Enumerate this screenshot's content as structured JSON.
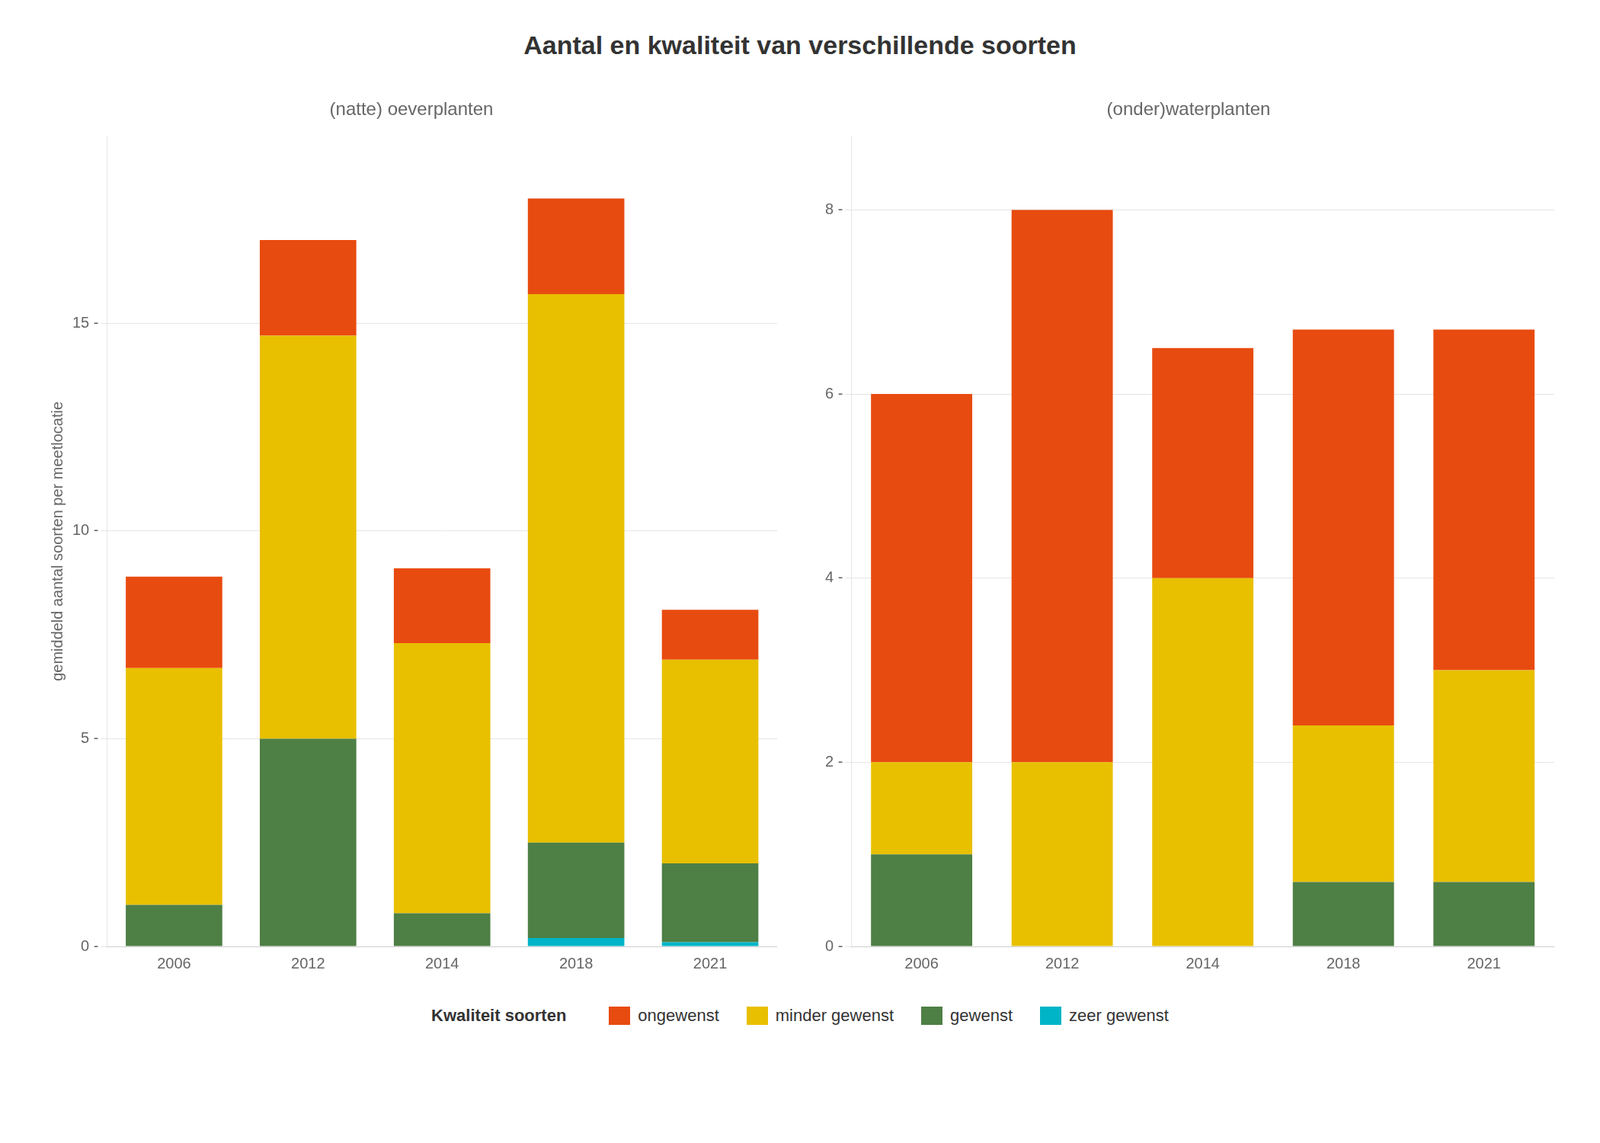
{
  "title": "Aantal en kwaliteit van verschillende soorten",
  "legend_title": "Kwaliteit soorten",
  "chart_data": [
    {
      "type": "bar",
      "stacked": true,
      "grid": true,
      "legend": "bottom",
      "title": "(natte) oeverplanten",
      "ylabel": "gemiddeld aantal soorten per meetlocatie",
      "categories": [
        "2006",
        "2012",
        "2014",
        "2018",
        "2021"
      ],
      "series": [
        {
          "name": "zeer gewenst",
          "color": "#00B4C8",
          "values": [
            0.0,
            0.0,
            0.0,
            0.2,
            0.1
          ]
        },
        {
          "name": "gewenst",
          "color": "#4E7F45",
          "values": [
            1.0,
            5.0,
            0.8,
            2.3,
            1.9
          ]
        },
        {
          "name": "minder gewenst",
          "color": "#E8C000",
          "values": [
            5.7,
            9.7,
            6.5,
            13.2,
            4.9
          ]
        },
        {
          "name": "ongewenst",
          "color": "#E84B10",
          "values": [
            2.2,
            2.3,
            1.8,
            2.3,
            1.2
          ]
        }
      ],
      "ylim": [
        0,
        19.5
      ],
      "yticks": [
        {
          "value": 0,
          "label": "0 -"
        },
        {
          "value": 5,
          "label": "5 -"
        },
        {
          "value": 10,
          "label": "10 -"
        },
        {
          "value": 15,
          "label": "15 -"
        }
      ]
    },
    {
      "type": "bar",
      "stacked": true,
      "grid": true,
      "legend": "bottom",
      "title": "(onder)waterplanten",
      "categories": [
        "2006",
        "2012",
        "2014",
        "2018",
        "2021"
      ],
      "series": [
        {
          "name": "zeer gewenst",
          "color": "#00B4C8",
          "values": [
            0.0,
            0.0,
            0.0,
            0.0,
            0.0
          ]
        },
        {
          "name": "gewenst",
          "color": "#4E7F45",
          "values": [
            1.0,
            0.0,
            0.0,
            0.7,
            0.7
          ]
        },
        {
          "name": "minder gewenst",
          "color": "#E8C000",
          "values": [
            1.0,
            2.0,
            4.0,
            1.7,
            2.3
          ]
        },
        {
          "name": "ongewenst",
          "color": "#E84B10",
          "values": [
            4.0,
            6.0,
            2.5,
            4.3,
            3.7
          ]
        }
      ],
      "ylim": [
        0,
        8.8
      ],
      "yticks": [
        {
          "value": 0,
          "label": "0 -"
        },
        {
          "value": 2,
          "label": "2 -"
        },
        {
          "value": 4,
          "label": "4 -"
        },
        {
          "value": 6,
          "label": "6 -"
        },
        {
          "value": 8,
          "label": "8 -"
        }
      ]
    }
  ]
}
